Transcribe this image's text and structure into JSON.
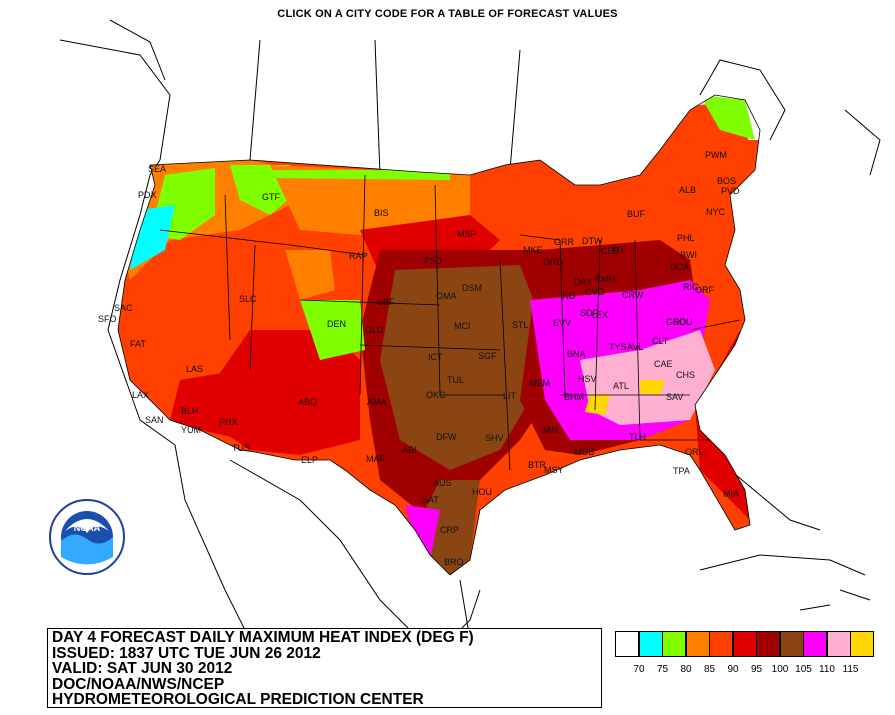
{
  "header": {
    "instruction": "CLICK ON A CITY CODE FOR A TABLE OF FORECAST VALUES"
  },
  "title_block": {
    "line1": "DAY 4 FORECAST DAILY MAXIMUM HEAT INDEX (DEG F)",
    "line2": "ISSUED: 1837 UTC TUE JUN 26 2012",
    "line3": "VALID: SAT JUN 30 2012",
    "line4": "DOC/NOAA/NWS/NCEP",
    "line5": "HYDROMETEOROLOGICAL PREDICTION CENTER"
  },
  "logo": {
    "icon": "noaa-logo",
    "text": "NOAA"
  },
  "legend": {
    "unit": "DEG F",
    "bins": [
      {
        "color": "#ffffff",
        "label": "70"
      },
      {
        "color": "#00ffff",
        "label": "75"
      },
      {
        "color": "#80ff00",
        "label": "80"
      },
      {
        "color": "#ff8000",
        "label": "85"
      },
      {
        "color": "#ff4000",
        "label": "90"
      },
      {
        "color": "#e00000",
        "label": "95"
      },
      {
        "color": "#a00000",
        "label": "100"
      },
      {
        "color": "#8b4513",
        "label": "105"
      },
      {
        "color": "#ff00ff",
        "label": "110"
      },
      {
        "color": "#ffb0d0",
        "label": "115"
      },
      {
        "color": "#ffd700",
        "label": ""
      }
    ]
  },
  "cities": [
    {
      "code": "SEA"
    },
    {
      "code": "PDX"
    },
    {
      "code": "GTF"
    },
    {
      "code": "BIS"
    },
    {
      "code": "MSP"
    },
    {
      "code": "RAP"
    },
    {
      "code": "FSD"
    },
    {
      "code": "OMA"
    },
    {
      "code": "DSM"
    },
    {
      "code": "LBF"
    },
    {
      "code": "SLC"
    },
    {
      "code": "SAC"
    },
    {
      "code": "SFO"
    },
    {
      "code": "FAT"
    },
    {
      "code": "LAS"
    },
    {
      "code": "LAX"
    },
    {
      "code": "SAN"
    },
    {
      "code": "BLH"
    },
    {
      "code": "YUM"
    },
    {
      "code": "PHX"
    },
    {
      "code": "TUS"
    },
    {
      "code": "ABQ"
    },
    {
      "code": "DEN"
    },
    {
      "code": "GLD"
    },
    {
      "code": "MCI"
    },
    {
      "code": "ICT"
    },
    {
      "code": "SGF"
    },
    {
      "code": "STL"
    },
    {
      "code": "TUL"
    },
    {
      "code": "OKC"
    },
    {
      "code": "AMA"
    },
    {
      "code": "ABI"
    },
    {
      "code": "DFW"
    },
    {
      "code": "ELP"
    },
    {
      "code": "MAF"
    },
    {
      "code": "SAT"
    },
    {
      "code": "AUS"
    },
    {
      "code": "HOU"
    },
    {
      "code": "CRP"
    },
    {
      "code": "BRO"
    },
    {
      "code": "SHV"
    },
    {
      "code": "LIT"
    },
    {
      "code": "JAN"
    },
    {
      "code": "BTR"
    },
    {
      "code": "MSY"
    },
    {
      "code": "MOB"
    },
    {
      "code": "MEM"
    },
    {
      "code": "BNA"
    },
    {
      "code": "HSV"
    },
    {
      "code": "BHM"
    },
    {
      "code": "ATL"
    },
    {
      "code": "TLH"
    },
    {
      "code": "TPA"
    },
    {
      "code": "ORL"
    },
    {
      "code": "MIA"
    },
    {
      "code": "SAV"
    },
    {
      "code": "CHS"
    },
    {
      "code": "CAE"
    },
    {
      "code": "CLT"
    },
    {
      "code": "TYS"
    },
    {
      "code": "AVL"
    },
    {
      "code": "GSO"
    },
    {
      "code": "RDU"
    },
    {
      "code": "RIC"
    },
    {
      "code": "ORF"
    },
    {
      "code": "CRW"
    },
    {
      "code": "LEX"
    },
    {
      "code": "SDF"
    },
    {
      "code": "EVV"
    },
    {
      "code": "IND"
    },
    {
      "code": "CVG"
    },
    {
      "code": "CMH"
    },
    {
      "code": "DAY"
    },
    {
      "code": "ORD"
    },
    {
      "code": "MKE"
    },
    {
      "code": "GRR"
    },
    {
      "code": "DTW"
    },
    {
      "code": "CLE"
    },
    {
      "code": "PIT"
    },
    {
      "code": "BUF"
    },
    {
      "code": "ALB"
    },
    {
      "code": "PWM"
    },
    {
      "code": "BOS"
    },
    {
      "code": "PVD"
    },
    {
      "code": "NYC"
    },
    {
      "code": "PHL"
    },
    {
      "code": "BWI"
    },
    {
      "code": "DCA"
    }
  ]
}
